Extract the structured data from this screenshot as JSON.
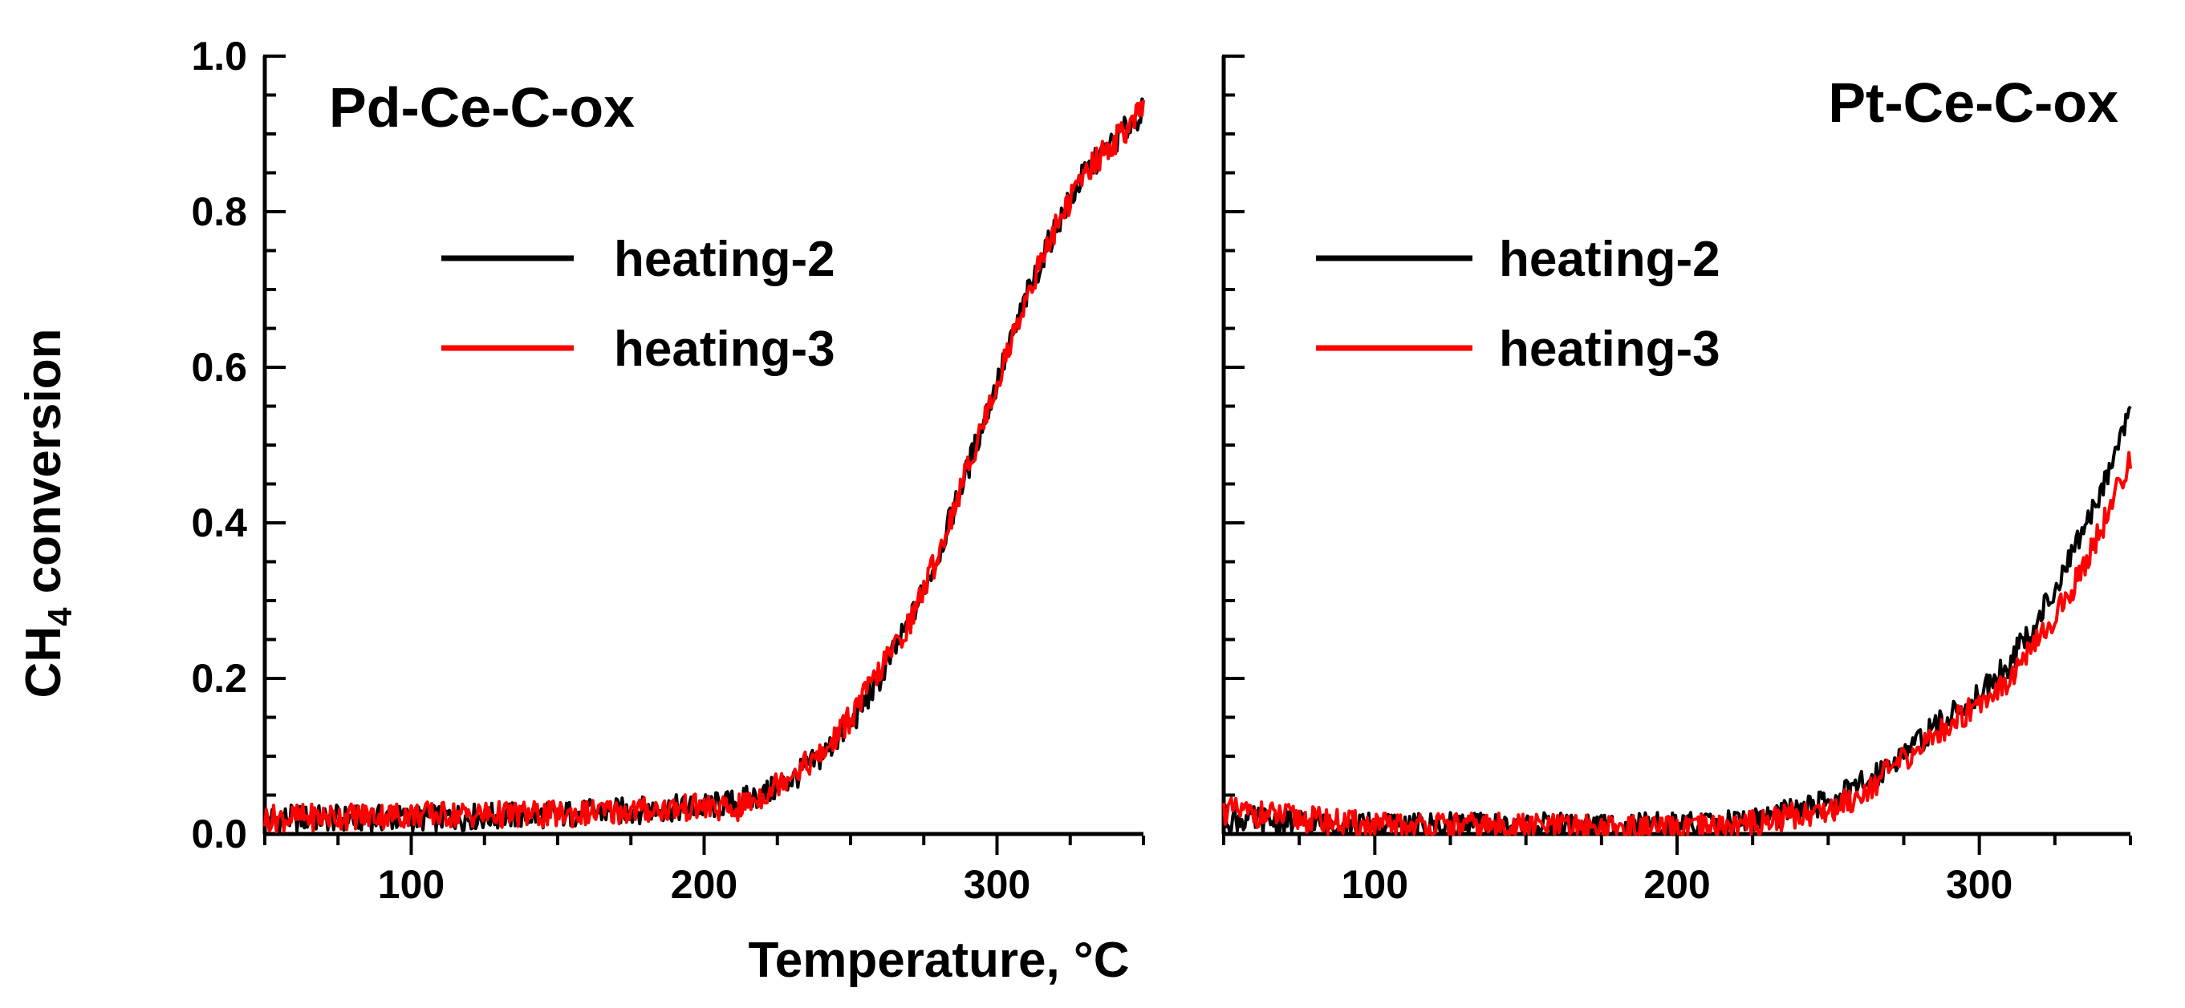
{
  "chart_data": {
    "type": "line",
    "ylabel": {
      "main": "CH",
      "subscript": "4",
      "rest": " conversion"
    },
    "xlabel": "Temperature, °C",
    "shared_y_ticks": [
      "0.0",
      "0.2",
      "0.4",
      "0.6",
      "0.8",
      "1.0"
    ],
    "ylim": [
      0,
      1.0
    ],
    "xlim": [
      50,
      350
    ],
    "panels": [
      {
        "title": "Pd-Ce-C-ox",
        "x_ticks": [
          "100",
          "200",
          "300"
        ],
        "legend": [
          {
            "label": "heating-2",
            "color": "#000000"
          },
          {
            "label": "heating-3",
            "color": "#ff0000"
          }
        ],
        "series": [
          {
            "name": "heating-2",
            "color": "#000000",
            "points": [
              [
                50,
                0.02
              ],
              [
                100,
                0.02
              ],
              [
                150,
                0.025
              ],
              [
                200,
                0.035
              ],
              [
                210,
                0.04
              ],
              [
                220,
                0.05
              ],
              [
                230,
                0.07
              ],
              [
                240,
                0.1
              ],
              [
                250,
                0.14
              ],
              [
                260,
                0.2
              ],
              [
                270,
                0.27
              ],
              [
                280,
                0.36
              ],
              [
                290,
                0.47
              ],
              [
                300,
                0.58
              ],
              [
                310,
                0.69
              ],
              [
                320,
                0.78
              ],
              [
                330,
                0.85
              ],
              [
                340,
                0.89
              ],
              [
                350,
                0.93
              ]
            ]
          },
          {
            "name": "heating-3",
            "color": "#ff0000",
            "points": [
              [
                50,
                0.02
              ],
              [
                100,
                0.025
              ],
              [
                150,
                0.025
              ],
              [
                200,
                0.035
              ],
              [
                210,
                0.03
              ],
              [
                220,
                0.05
              ],
              [
                230,
                0.08
              ],
              [
                240,
                0.1
              ],
              [
                250,
                0.15
              ],
              [
                260,
                0.21
              ],
              [
                270,
                0.27
              ],
              [
                280,
                0.36
              ],
              [
                290,
                0.47
              ],
              [
                300,
                0.58
              ],
              [
                310,
                0.69
              ],
              [
                320,
                0.78
              ],
              [
                330,
                0.85
              ],
              [
                340,
                0.89
              ],
              [
                350,
                0.93
              ]
            ]
          }
        ]
      },
      {
        "title": "Pt-Ce-C-ox",
        "x_ticks": [
          "100",
          "200",
          "300"
        ],
        "legend": [
          {
            "label": "heating-2",
            "color": "#000000"
          },
          {
            "label": "heating-3",
            "color": "#ff0000"
          }
        ],
        "series": [
          {
            "name": "heating-2",
            "color": "#000000",
            "points": [
              [
                50,
                0.02
              ],
              [
                100,
                0.01
              ],
              [
                150,
                0.01
              ],
              [
                200,
                0.01
              ],
              [
                220,
                0.015
              ],
              [
                240,
                0.03
              ],
              [
                250,
                0.04
              ],
              [
                260,
                0.06
              ],
              [
                270,
                0.09
              ],
              [
                280,
                0.12
              ],
              [
                290,
                0.15
              ],
              [
                300,
                0.18
              ],
              [
                310,
                0.22
              ],
              [
                320,
                0.28
              ],
              [
                330,
                0.35
              ],
              [
                340,
                0.44
              ],
              [
                350,
                0.55
              ]
            ]
          },
          {
            "name": "heating-3",
            "color": "#ff0000",
            "points": [
              [
                50,
                0.03
              ],
              [
                100,
                0.01
              ],
              [
                150,
                0.01
              ],
              [
                200,
                0.005
              ],
              [
                220,
                0.01
              ],
              [
                240,
                0.025
              ],
              [
                250,
                0.03
              ],
              [
                260,
                0.05
              ],
              [
                270,
                0.08
              ],
              [
                280,
                0.11
              ],
              [
                290,
                0.14
              ],
              [
                300,
                0.17
              ],
              [
                310,
                0.2
              ],
              [
                320,
                0.25
              ],
              [
                330,
                0.31
              ],
              [
                340,
                0.39
              ],
              [
                350,
                0.48
              ]
            ]
          }
        ]
      }
    ]
  }
}
